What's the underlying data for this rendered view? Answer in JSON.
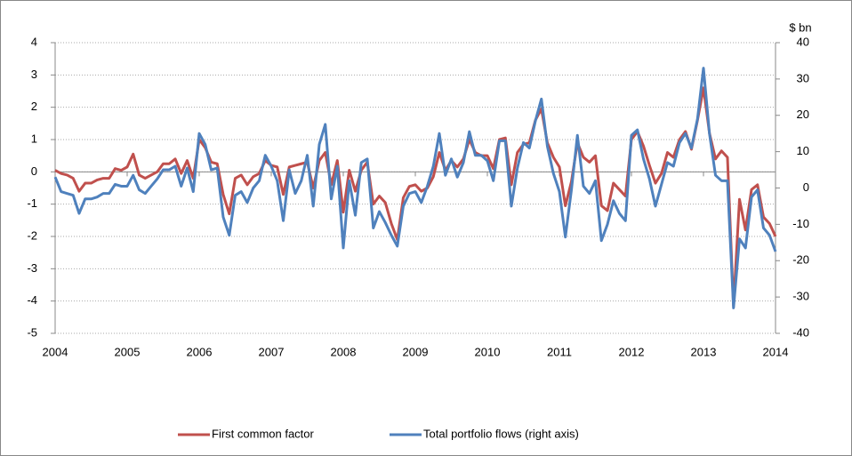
{
  "chart_data": {
    "type": "line",
    "y2label": "$ bn",
    "x": [
      2004,
      2004.083,
      2004.167,
      2004.25,
      2004.333,
      2004.417,
      2004.5,
      2004.583,
      2004.667,
      2004.75,
      2004.833,
      2004.917,
      2005,
      2005.083,
      2005.167,
      2005.25,
      2005.333,
      2005.417,
      2005.5,
      2005.583,
      2005.667,
      2005.75,
      2005.833,
      2005.917,
      2006,
      2006.083,
      2006.167,
      2006.25,
      2006.333,
      2006.417,
      2006.5,
      2006.583,
      2006.667,
      2006.75,
      2006.833,
      2006.917,
      2007,
      2007.083,
      2007.167,
      2007.25,
      2007.333,
      2007.417,
      2007.5,
      2007.583,
      2007.667,
      2007.75,
      2007.833,
      2007.917,
      2008,
      2008.083,
      2008.167,
      2008.25,
      2008.333,
      2008.417,
      2008.5,
      2008.583,
      2008.667,
      2008.75,
      2008.833,
      2008.917,
      2009,
      2009.083,
      2009.167,
      2009.25,
      2009.333,
      2009.417,
      2009.5,
      2009.583,
      2009.667,
      2009.75,
      2009.833,
      2009.917,
      2010,
      2010.083,
      2010.167,
      2010.25,
      2010.333,
      2010.417,
      2010.5,
      2010.583,
      2010.667,
      2010.75,
      2010.833,
      2010.917,
      2011,
      2011.083,
      2011.167,
      2011.25,
      2011.333,
      2011.417,
      2011.5,
      2011.583,
      2011.667,
      2011.75,
      2011.833,
      2011.917,
      2012,
      2012.083,
      2012.167,
      2012.25,
      2012.333,
      2012.417,
      2012.5,
      2012.583,
      2012.667,
      2012.75,
      2012.833,
      2012.917,
      2013,
      2013.083,
      2013.167,
      2013.25,
      2013.333,
      2013.417,
      2013.5,
      2013.583,
      2013.667,
      2013.75,
      2013.833,
      2013.917,
      2014
    ],
    "series": [
      {
        "name": "First common factor",
        "color": "#c0504d",
        "values": [
          0.05,
          -0.05,
          -0.1,
          -0.2,
          -0.6,
          -0.35,
          -0.35,
          -0.25,
          -0.2,
          -0.2,
          0.1,
          0.05,
          0.15,
          0.55,
          -0.1,
          -0.2,
          -0.1,
          0,
          0.25,
          0.25,
          0.4,
          -0.05,
          0.35,
          -0.2,
          1.0,
          0.75,
          0.3,
          0.25,
          -0.7,
          -1.3,
          -0.2,
          -0.1,
          -0.4,
          -0.15,
          -0.05,
          0.35,
          0.2,
          0.15,
          -0.7,
          0.15,
          0.2,
          0.25,
          0.3,
          -0.5,
          0.35,
          0.6,
          -0.4,
          0.35,
          -1.25,
          0.05,
          -0.6,
          0.05,
          0.3,
          -1.0,
          -0.75,
          -0.95,
          -1.6,
          -2.1,
          -0.8,
          -0.45,
          -0.4,
          -0.6,
          -0.5,
          -0.15,
          0.6,
          0.05,
          0.35,
          0.15,
          0.4,
          1.0,
          0.6,
          0.5,
          0.5,
          0.1,
          1.0,
          1.05,
          -0.4,
          0.6,
          0.85,
          0.9,
          1.6,
          1.95,
          0.9,
          0.45,
          0.15,
          -1.05,
          -0.3,
          0.9,
          0.45,
          0.3,
          0.5,
          -1.05,
          -1.2,
          -0.35,
          -0.55,
          -0.75,
          1.0,
          1.25,
          0.8,
          0.2,
          -0.35,
          -0.05,
          0.6,
          0.45,
          1.0,
          1.25,
          0.7,
          1.6,
          2.6,
          1.2,
          0.4,
          0.65,
          0.45,
          -4.15,
          -0.85,
          -1.8,
          -0.55,
          -0.4,
          -1.4,
          -1.6,
          -2.0
        ]
      },
      {
        "name": "Total portfolio flows (right axis)",
        "color": "#4f81bd",
        "axis": "y2",
        "values": [
          3,
          -1,
          -1.5,
          -2,
          -7,
          -3,
          -3,
          -2.5,
          -1.5,
          -1.5,
          1,
          0.5,
          0.5,
          3.5,
          -0.5,
          -1.5,
          0.5,
          2.5,
          5,
          5,
          6,
          0.5,
          5.5,
          -1,
          15,
          12,
          5,
          5.5,
          -8,
          -13,
          -2,
          -1,
          -4,
          0,
          2,
          9,
          6,
          2,
          -9,
          5,
          -1.5,
          2,
          9,
          -5,
          12,
          17.5,
          -3,
          6,
          -16.5,
          2,
          -7.5,
          7,
          8,
          -11,
          -6.5,
          -9.5,
          -13,
          -16,
          -5,
          -1.5,
          -1,
          -4,
          0.5,
          6,
          15,
          3.5,
          8,
          3,
          7,
          15.5,
          9,
          9,
          7.5,
          2,
          13,
          13,
          -5,
          5.5,
          12.5,
          11,
          18.5,
          24.5,
          11.5,
          4,
          -1,
          -13.5,
          -0.5,
          14.5,
          0.5,
          -1.5,
          2,
          -14.5,
          -10,
          -3.5,
          -7,
          -9,
          14.5,
          16,
          8,
          2.5,
          -5,
          1,
          7,
          6,
          12.5,
          15,
          11,
          19,
          33,
          15,
          3.5,
          2,
          2,
          -33,
          -14,
          -16.5,
          -2.5,
          -0.5,
          -11,
          -13,
          -17.5
        ]
      }
    ],
    "xlim": [
      2004,
      2014
    ],
    "xticks": [
      2004,
      2005,
      2006,
      2007,
      2008,
      2009,
      2010,
      2011,
      2012,
      2013,
      2014
    ],
    "ylim": [
      -5,
      4
    ],
    "yticks": [
      -5,
      -4,
      -3,
      -2,
      -1,
      0,
      1,
      2,
      3,
      4
    ],
    "y2lim": [
      -40,
      40
    ],
    "y2ticks": [
      -40,
      -30,
      -20,
      -10,
      0,
      10,
      20,
      30,
      40
    ],
    "grid": true,
    "legend": "bottom"
  }
}
